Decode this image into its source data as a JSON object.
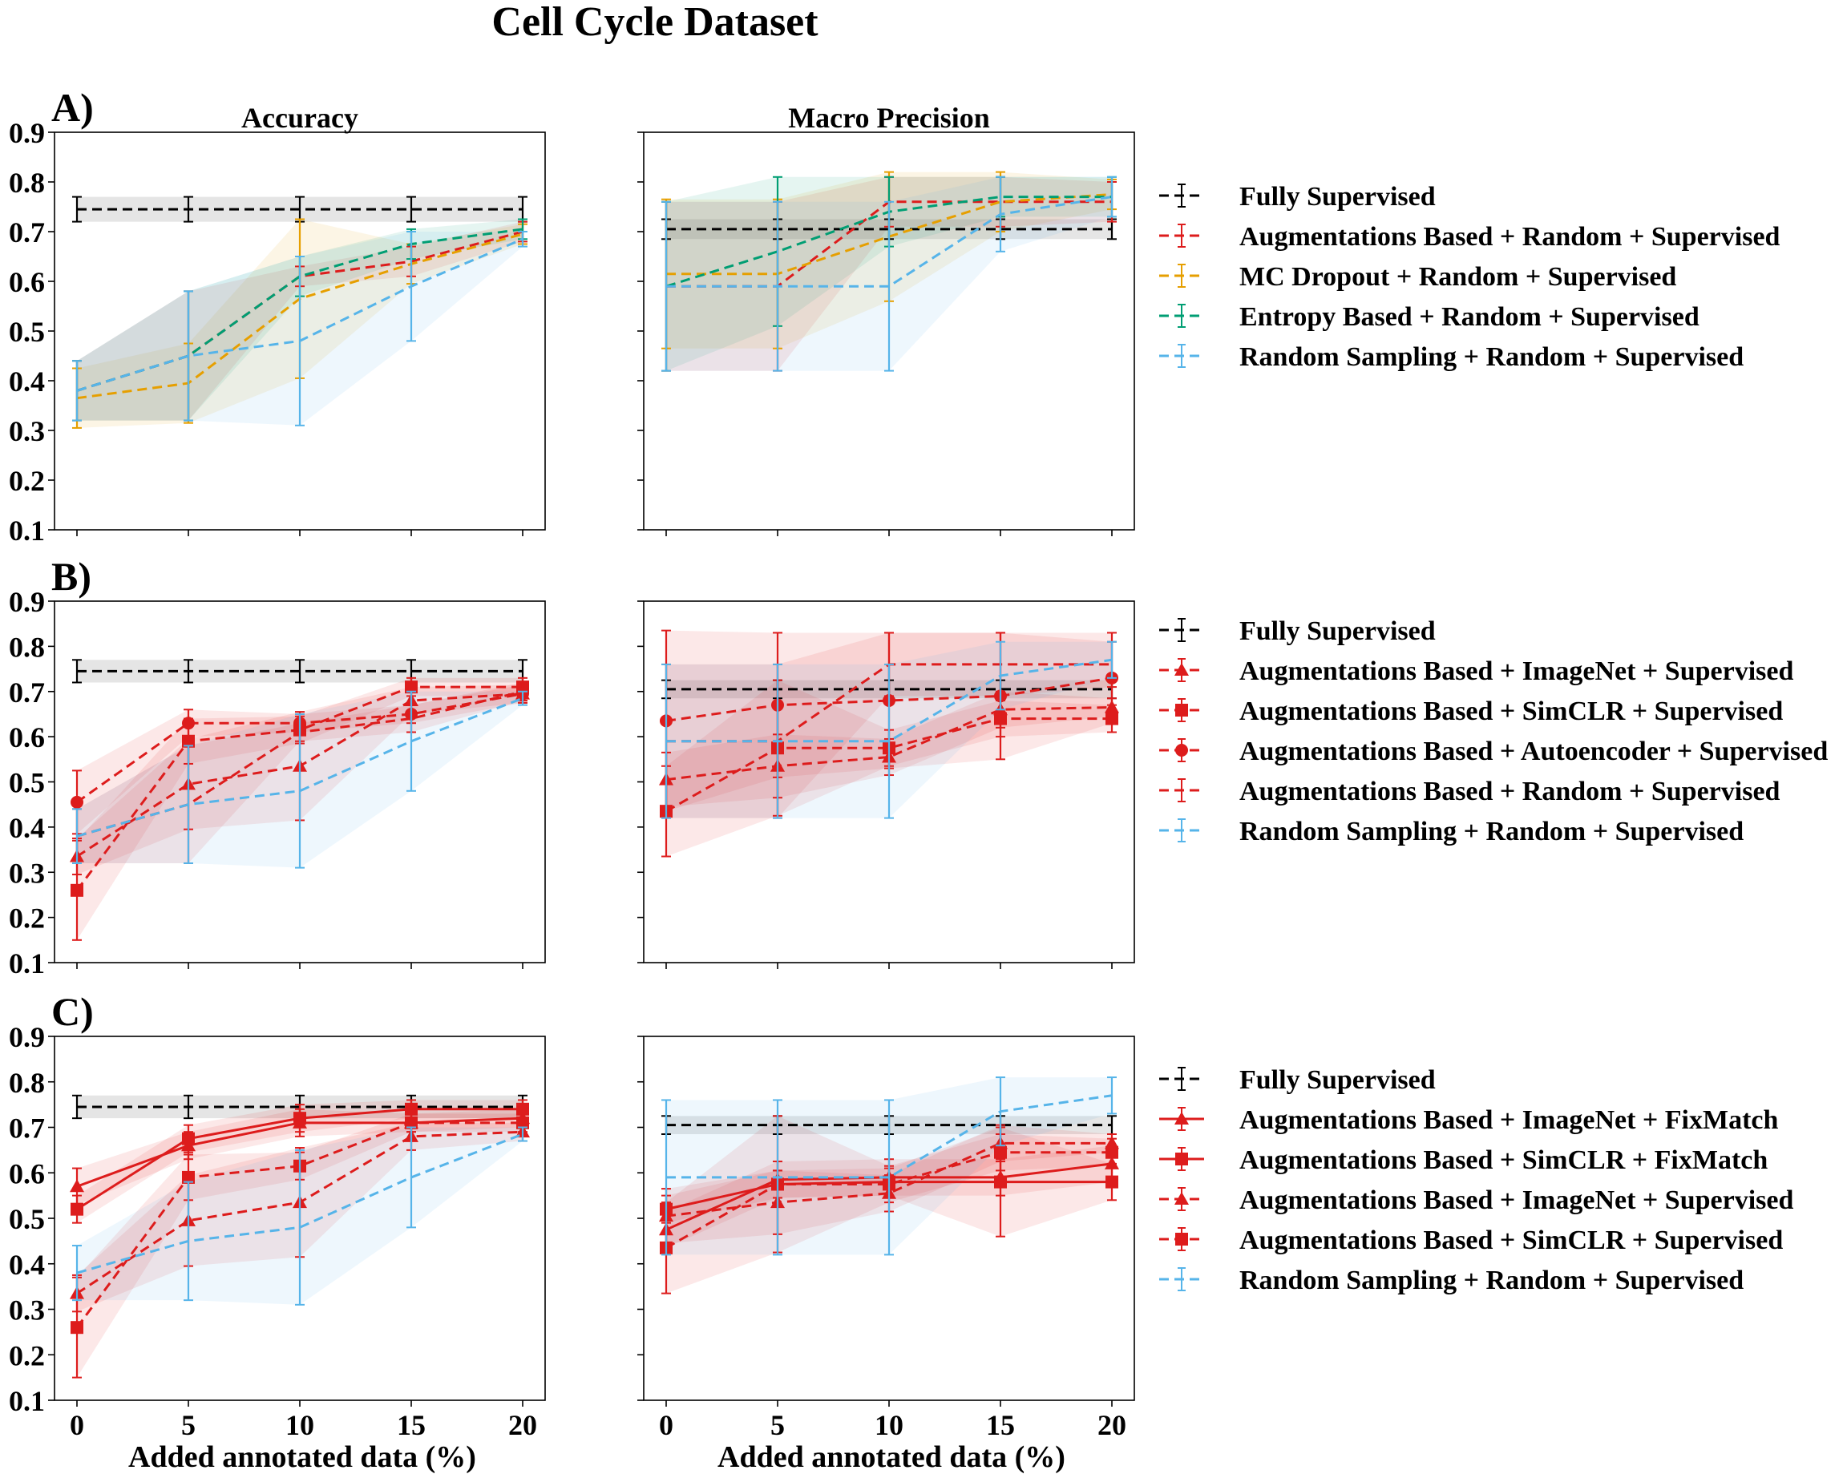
{
  "title": "Cell Cycle Dataset",
  "colors": {
    "black": "#000000",
    "red": "#dd1c1c",
    "orange": "#e69f00",
    "green": "#009e73",
    "blue": "#56b4e9"
  },
  "legends": [
    [
      "Fully Supervised",
      "Augmentations Based +  Random + Supervised",
      "MC Dropout +  Random + Supervised",
      "Entropy Based +  Random + Supervised",
      "Random Sampling +  Random + Supervised"
    ],
    [
      "Fully Supervised",
      "Augmentations Based + ImageNet + Supervised",
      "Augmentations Based + SimCLR + Supervised",
      "Augmentations Based + Autoencoder + Supervised",
      "Augmentations Based +  Random + Supervised",
      "Random Sampling +  Random + Supervised"
    ],
    [
      "Fully Supervised",
      "Augmentations Based + ImageNet + FixMatch",
      "Augmentations Based + SimCLR + FixMatch",
      "Augmentations Based + ImageNet + Supervised",
      "Augmentations Based + SimCLR + Supervised",
      "Random Sampling +  Random + Supervised"
    ]
  ],
  "chart_data": [
    {
      "type": "line",
      "panel_label": "A)",
      "title": "Accuracy",
      "xlabel": "",
      "x": [
        0,
        5,
        10,
        15,
        20
      ],
      "ylim": [
        0.1,
        0.9
      ],
      "xticks": [
        "0",
        "5",
        "10",
        "15",
        "20"
      ],
      "yticks": [
        "0.1",
        "0.2",
        "0.3",
        "0.4",
        "0.5",
        "0.6",
        "0.7",
        "0.8",
        "0.9"
      ],
      "series": [
        {
          "name": "Fully Supervised",
          "color": "#000000",
          "dash": "dashed",
          "marker": "none",
          "values": [
            0.745,
            0.745,
            0.745,
            0.745,
            0.745
          ],
          "err": [
            0.025,
            0.025,
            0.025,
            0.025,
            0.025
          ]
        },
        {
          "name": "Augmentations Based +  Random + Supervised",
          "color": "#dd1c1c",
          "dash": "dashed",
          "marker": "none",
          "values": [
            0.38,
            0.45,
            0.61,
            0.64,
            0.7
          ],
          "err": [
            0.06,
            0.13,
            0.02,
            0.03,
            0.02
          ]
        },
        {
          "name": "MC Dropout +  Random + Supervised",
          "color": "#e69f00",
          "dash": "dashed",
          "marker": "none",
          "values": [
            0.365,
            0.395,
            0.565,
            0.635,
            0.695
          ],
          "err": [
            0.06,
            0.08,
            0.16,
            0.04,
            0.02
          ]
        },
        {
          "name": "Entropy Based +  Random + Supervised",
          "color": "#009e73",
          "dash": "dashed",
          "marker": "none",
          "values": [
            0.38,
            0.45,
            0.61,
            0.675,
            0.705
          ],
          "err": [
            0.06,
            0.13,
            0.04,
            0.03,
            0.02
          ]
        },
        {
          "name": "Random Sampling +  Random + Supervised",
          "color": "#56b4e9",
          "dash": "dashed",
          "marker": "none",
          "values": [
            0.38,
            0.45,
            0.48,
            0.59,
            0.685
          ],
          "err": [
            0.06,
            0.13,
            0.17,
            0.11,
            0.015
          ]
        }
      ]
    },
    {
      "type": "line",
      "panel_label": "",
      "title": "Macro Precision",
      "xlabel": "",
      "x": [
        0,
        5,
        10,
        15,
        20
      ],
      "ylim": [
        0.1,
        0.9
      ],
      "xticks": [
        "0",
        "5",
        "10",
        "15",
        "20"
      ],
      "yticks": [],
      "series": [
        {
          "name": "Fully Supervised",
          "color": "#000000",
          "dash": "dashed",
          "marker": "none",
          "values": [
            0.705,
            0.705,
            0.705,
            0.705,
            0.705
          ],
          "err": [
            0.02,
            0.02,
            0.02,
            0.02,
            0.02
          ]
        },
        {
          "name": "Augmentations Based +  Random + Supervised",
          "color": "#dd1c1c",
          "dash": "dashed",
          "marker": "none",
          "values": [
            0.59,
            0.59,
            0.76,
            0.76,
            0.76
          ],
          "err": [
            0.17,
            0.17,
            0.05,
            0.05,
            0.04
          ]
        },
        {
          "name": "MC Dropout +  Random + Supervised",
          "color": "#e69f00",
          "dash": "dashed",
          "marker": "none",
          "values": [
            0.615,
            0.615,
            0.69,
            0.76,
            0.775
          ],
          "err": [
            0.15,
            0.15,
            0.13,
            0.06,
            0.03
          ]
        },
        {
          "name": "Entropy Based +  Random + Supervised",
          "color": "#009e73",
          "dash": "dashed",
          "marker": "none",
          "values": [
            0.59,
            0.66,
            0.74,
            0.77,
            0.77
          ],
          "err": [
            0.17,
            0.15,
            0.07,
            0.04,
            0.04
          ]
        },
        {
          "name": "Random Sampling +  Random + Supervised",
          "color": "#56b4e9",
          "dash": "dashed",
          "marker": "none",
          "values": [
            0.59,
            0.59,
            0.59,
            0.735,
            0.77
          ],
          "err": [
            0.17,
            0.17,
            0.17,
            0.075,
            0.04
          ]
        }
      ]
    },
    {
      "type": "line",
      "panel_label": "B)",
      "title": "",
      "xlabel": "",
      "x": [
        0,
        5,
        10,
        15,
        20
      ],
      "ylim": [
        0.1,
        0.9
      ],
      "xticks": [
        "0",
        "5",
        "10",
        "15",
        "20"
      ],
      "yticks": [
        "0.1",
        "0.2",
        "0.3",
        "0.4",
        "0.5",
        "0.6",
        "0.7",
        "0.8",
        "0.9"
      ],
      "series": [
        {
          "name": "Fully Supervised",
          "color": "#000000",
          "dash": "dashed",
          "marker": "none",
          "values": [
            0.745,
            0.745,
            0.745,
            0.745,
            0.745
          ],
          "err": [
            0.025,
            0.025,
            0.025,
            0.025,
            0.025
          ]
        },
        {
          "name": "Augmentations Based + ImageNet + Supervised",
          "color": "#dd1c1c",
          "dash": "dashed",
          "marker": "triangle",
          "values": [
            0.335,
            0.495,
            0.535,
            0.68,
            0.695
          ],
          "err": [
            0.04,
            0.1,
            0.12,
            0.03,
            0.02
          ]
        },
        {
          "name": "Augmentations Based + SimCLR + Supervised",
          "color": "#dd1c1c",
          "dash": "dashed",
          "marker": "square",
          "values": [
            0.26,
            0.59,
            0.615,
            0.71,
            0.71
          ],
          "err": [
            0.11,
            0.05,
            0.03,
            0.02,
            0.02
          ]
        },
        {
          "name": "Augmentations Based + Autoencoder + Supervised",
          "color": "#dd1c1c",
          "dash": "dashed",
          "marker": "circle",
          "values": [
            0.455,
            0.63,
            0.63,
            0.65,
            0.695
          ],
          "err": [
            0.07,
            0.03,
            0.02,
            0.02,
            0.02
          ]
        },
        {
          "name": "Augmentations Based +  Random + Supervised",
          "color": "#dd1c1c",
          "dash": "dashed",
          "marker": "none",
          "values": [
            0.38,
            0.45,
            0.61,
            0.64,
            0.7
          ],
          "err": [
            0.06,
            0.13,
            0.02,
            0.03,
            0.02
          ]
        },
        {
          "name": "Random Sampling +  Random + Supervised",
          "color": "#56b4e9",
          "dash": "dashed",
          "marker": "none",
          "values": [
            0.38,
            0.45,
            0.48,
            0.59,
            0.685
          ],
          "err": [
            0.06,
            0.13,
            0.17,
            0.11,
            0.015
          ]
        }
      ]
    },
    {
      "type": "line",
      "panel_label": "",
      "title": "",
      "xlabel": "",
      "x": [
        0,
        5,
        10,
        15,
        20
      ],
      "ylim": [
        0.1,
        0.9
      ],
      "xticks": [
        "0",
        "5",
        "10",
        "15",
        "20"
      ],
      "yticks": [],
      "series": [
        {
          "name": "Fully Supervised",
          "color": "#000000",
          "dash": "dashed",
          "marker": "none",
          "values": [
            0.705,
            0.705,
            0.705,
            0.705,
            0.705
          ],
          "err": [
            0.02,
            0.02,
            0.02,
            0.02,
            0.02
          ]
        },
        {
          "name": "Augmentations Based + ImageNet + Supervised",
          "color": "#dd1c1c",
          "dash": "dashed",
          "marker": "triangle",
          "values": [
            0.505,
            0.535,
            0.555,
            0.66,
            0.665
          ],
          "err": [
            0.06,
            0.07,
            0.04,
            0.04,
            0.02
          ]
        },
        {
          "name": "Augmentations Based + SimCLR + Supervised",
          "color": "#dd1c1c",
          "dash": "dashed",
          "marker": "square",
          "values": [
            0.435,
            0.575,
            0.575,
            0.64,
            0.64
          ],
          "err": [
            0.1,
            0.15,
            0.04,
            0.04,
            0.03
          ]
        },
        {
          "name": "Augmentations Based + Autoencoder + Supervised",
          "color": "#dd1c1c",
          "dash": "dashed",
          "marker": "circle",
          "values": [
            0.635,
            0.67,
            0.68,
            0.69,
            0.73
          ],
          "err": [
            0.2,
            0.16,
            0.15,
            0.14,
            0.1
          ]
        },
        {
          "name": "Augmentations Based +  Random + Supervised",
          "color": "#dd1c1c",
          "dash": "dashed",
          "marker": "none",
          "values": [
            0.59,
            0.59,
            0.76,
            0.76,
            0.76
          ],
          "err": [
            0.17,
            0.17,
            0.07,
            0.07,
            0.05
          ]
        },
        {
          "name": "Random Sampling +  Random + Supervised",
          "color": "#56b4e9",
          "dash": "dashed",
          "marker": "none",
          "values": [
            0.59,
            0.59,
            0.59,
            0.735,
            0.77
          ],
          "err": [
            0.17,
            0.17,
            0.17,
            0.075,
            0.04
          ]
        }
      ]
    },
    {
      "type": "line",
      "panel_label": "C)",
      "title": "",
      "xlabel": "Added annotated data (%)",
      "x": [
        0,
        5,
        10,
        15,
        20
      ],
      "ylim": [
        0.1,
        0.9
      ],
      "xticks": [
        "0",
        "5",
        "10",
        "15",
        "20"
      ],
      "yticks": [
        "0.1",
        "0.2",
        "0.3",
        "0.4",
        "0.5",
        "0.6",
        "0.7",
        "0.8",
        "0.9"
      ],
      "series": [
        {
          "name": "Fully Supervised",
          "color": "#000000",
          "dash": "dashed",
          "marker": "none",
          "values": [
            0.745,
            0.745,
            0.745,
            0.745,
            0.745
          ],
          "err": [
            0.025,
            0.025,
            0.025,
            0.025,
            0.025
          ]
        },
        {
          "name": "Augmentations Based + ImageNet + FixMatch",
          "color": "#dd1c1c",
          "dash": "solid",
          "marker": "triangle",
          "values": [
            0.57,
            0.66,
            0.71,
            0.71,
            0.72
          ],
          "err": [
            0.04,
            0.03,
            0.03,
            0.02,
            0.02
          ]
        },
        {
          "name": "Augmentations Based + SimCLR + FixMatch",
          "color": "#dd1c1c",
          "dash": "solid",
          "marker": "square",
          "values": [
            0.52,
            0.675,
            0.72,
            0.74,
            0.74
          ],
          "err": [
            0.03,
            0.03,
            0.03,
            0.02,
            0.02
          ]
        },
        {
          "name": "Augmentations Based + ImageNet + Supervised",
          "color": "#dd1c1c",
          "dash": "dashed",
          "marker": "triangle",
          "values": [
            0.335,
            0.495,
            0.535,
            0.68,
            0.69
          ],
          "err": [
            0.04,
            0.1,
            0.12,
            0.03,
            0.02
          ]
        },
        {
          "name": "Augmentations Based + SimCLR + Supervised",
          "color": "#dd1c1c",
          "dash": "dashed",
          "marker": "square",
          "values": [
            0.26,
            0.59,
            0.615,
            0.71,
            0.71
          ],
          "err": [
            0.11,
            0.05,
            0.03,
            0.02,
            0.02
          ]
        },
        {
          "name": "Random Sampling +  Random + Supervised",
          "color": "#56b4e9",
          "dash": "dashed",
          "marker": "none",
          "values": [
            0.38,
            0.45,
            0.48,
            0.59,
            0.685
          ],
          "err": [
            0.06,
            0.13,
            0.17,
            0.11,
            0.015
          ]
        }
      ]
    },
    {
      "type": "line",
      "panel_label": "",
      "title": "",
      "xlabel": "Added annotated data (%)",
      "x": [
        0,
        5,
        10,
        15,
        20
      ],
      "ylim": [
        0.1,
        0.9
      ],
      "xticks": [
        "0",
        "5",
        "10",
        "15",
        "20"
      ],
      "yticks": [],
      "series": [
        {
          "name": "Fully Supervised",
          "color": "#000000",
          "dash": "dashed",
          "marker": "none",
          "values": [
            0.705,
            0.705,
            0.705,
            0.705,
            0.705
          ],
          "err": [
            0.02,
            0.02,
            0.02,
            0.02,
            0.02
          ]
        },
        {
          "name": "Augmentations Based + ImageNet + FixMatch",
          "color": "#dd1c1c",
          "dash": "solid",
          "marker": "triangle",
          "values": [
            0.475,
            0.585,
            0.59,
            0.59,
            0.62
          ],
          "err": [
            0.04,
            0.04,
            0.04,
            0.04,
            0.04
          ]
        },
        {
          "name": "Augmentations Based + SimCLR + FixMatch",
          "color": "#dd1c1c",
          "dash": "solid",
          "marker": "square",
          "values": [
            0.52,
            0.575,
            0.58,
            0.58,
            0.58
          ],
          "err": [
            0.03,
            0.03,
            0.03,
            0.12,
            0.04
          ]
        },
        {
          "name": "Augmentations Based + ImageNet + Supervised",
          "color": "#dd1c1c",
          "dash": "dashed",
          "marker": "triangle",
          "values": [
            0.505,
            0.535,
            0.555,
            0.665,
            0.665
          ],
          "err": [
            0.06,
            0.07,
            0.04,
            0.04,
            0.02
          ]
        },
        {
          "name": "Augmentations Based + SimCLR + Supervised",
          "color": "#dd1c1c",
          "dash": "dashed",
          "marker": "square",
          "values": [
            0.435,
            0.575,
            0.575,
            0.645,
            0.645
          ],
          "err": [
            0.1,
            0.15,
            0.04,
            0.04,
            0.03
          ]
        },
        {
          "name": "Random Sampling +  Random + Supervised",
          "color": "#56b4e9",
          "dash": "dashed",
          "marker": "none",
          "values": [
            0.59,
            0.59,
            0.59,
            0.735,
            0.77
          ],
          "err": [
            0.17,
            0.17,
            0.17,
            0.075,
            0.04
          ]
        }
      ]
    }
  ]
}
